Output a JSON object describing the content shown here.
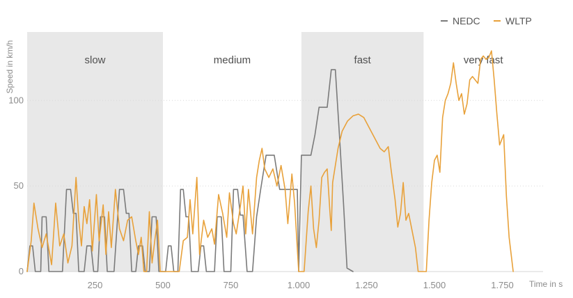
{
  "chart_data": {
    "type": "line",
    "title": "",
    "xlabel": "Time in s",
    "ylabel": "Speed in km/h",
    "xlim": [
      0,
      1900
    ],
    "ylim": [
      0,
      140
    ],
    "x_ticks": [
      250,
      500,
      750,
      1000,
      1250,
      1500,
      1750
    ],
    "x_tick_labels": [
      "250",
      "500",
      "750",
      "1.000",
      "1.250",
      "1.500",
      "1.750"
    ],
    "y_ticks": [
      0,
      50,
      100
    ],
    "y_tick_labels": [
      "0",
      "50",
      "100"
    ],
    "grid": false,
    "legend_position": "top-right",
    "bands": [
      {
        "label": "slow",
        "x": [
          0,
          500
        ],
        "shaded": true
      },
      {
        "label": "medium",
        "x": [
          500,
          1010
        ],
        "shaded": false
      },
      {
        "label": "fast",
        "x": [
          1010,
          1460
        ],
        "shaded": true
      },
      {
        "label": "very fast",
        "x": [
          1460,
          1900
        ],
        "shaded": false
      }
    ],
    "series": [
      {
        "name": "NEDC",
        "color": "#7a7a7a",
        "points": [
          [
            0,
            0
          ],
          [
            10,
            15
          ],
          [
            20,
            15
          ],
          [
            30,
            0
          ],
          [
            50,
            0
          ],
          [
            55,
            32
          ],
          [
            70,
            32
          ],
          [
            80,
            0
          ],
          [
            130,
            0
          ],
          [
            145,
            48
          ],
          [
            160,
            48
          ],
          [
            170,
            34
          ],
          [
            180,
            34
          ],
          [
            190,
            0
          ],
          [
            210,
            0
          ],
          [
            220,
            15
          ],
          [
            235,
            15
          ],
          [
            245,
            0
          ],
          [
            260,
            0
          ],
          [
            270,
            32
          ],
          [
            285,
            32
          ],
          [
            295,
            0
          ],
          [
            320,
            0
          ],
          [
            340,
            48
          ],
          [
            355,
            48
          ],
          [
            365,
            34
          ],
          [
            375,
            34
          ],
          [
            385,
            0
          ],
          [
            400,
            0
          ],
          [
            410,
            15
          ],
          [
            425,
            15
          ],
          [
            435,
            0
          ],
          [
            450,
            0
          ],
          [
            460,
            32
          ],
          [
            475,
            32
          ],
          [
            485,
            0
          ],
          [
            500,
            0
          ],
          [
            510,
            0
          ],
          [
            520,
            15
          ],
          [
            530,
            15
          ],
          [
            540,
            0
          ],
          [
            555,
            0
          ],
          [
            565,
            48
          ],
          [
            575,
            48
          ],
          [
            585,
            32
          ],
          [
            595,
            32
          ],
          [
            605,
            0
          ],
          [
            630,
            0
          ],
          [
            640,
            15
          ],
          [
            650,
            15
          ],
          [
            660,
            0
          ],
          [
            690,
            0
          ],
          [
            700,
            32
          ],
          [
            715,
            32
          ],
          [
            725,
            0
          ],
          [
            750,
            0
          ],
          [
            760,
            48
          ],
          [
            775,
            48
          ],
          [
            785,
            33
          ],
          [
            795,
            33
          ],
          [
            810,
            0
          ],
          [
            830,
            0
          ],
          [
            845,
            32
          ],
          [
            860,
            48
          ],
          [
            880,
            68
          ],
          [
            910,
            68
          ],
          [
            930,
            48
          ],
          [
            960,
            48
          ],
          [
            995,
            48
          ],
          [
            1000,
            0
          ],
          [
            1010,
            68
          ],
          [
            1045,
            68
          ],
          [
            1060,
            80
          ],
          [
            1075,
            96
          ],
          [
            1105,
            96
          ],
          [
            1120,
            118
          ],
          [
            1135,
            118
          ],
          [
            1150,
            80
          ],
          [
            1165,
            40
          ],
          [
            1178,
            2
          ],
          [
            1200,
            0
          ]
        ]
      },
      {
        "name": "WLTP",
        "color": "#e8a13a",
        "points": [
          [
            0,
            0
          ],
          [
            15,
            18
          ],
          [
            25,
            40
          ],
          [
            40,
            25
          ],
          [
            55,
            14
          ],
          [
            70,
            22
          ],
          [
            90,
            4
          ],
          [
            105,
            40
          ],
          [
            120,
            15
          ],
          [
            135,
            22
          ],
          [
            150,
            5
          ],
          [
            165,
            15
          ],
          [
            180,
            55
          ],
          [
            190,
            30
          ],
          [
            200,
            15
          ],
          [
            210,
            38
          ],
          [
            220,
            28
          ],
          [
            230,
            42
          ],
          [
            240,
            12
          ],
          [
            255,
            45
          ],
          [
            265,
            18
          ],
          [
            280,
            39
          ],
          [
            290,
            10
          ],
          [
            300,
            35
          ],
          [
            310,
            14
          ],
          [
            325,
            48
          ],
          [
            340,
            25
          ],
          [
            355,
            18
          ],
          [
            370,
            30
          ],
          [
            385,
            32
          ],
          [
            400,
            18
          ],
          [
            410,
            10
          ],
          [
            420,
            20
          ],
          [
            430,
            0
          ],
          [
            440,
            0
          ],
          [
            450,
            35
          ],
          [
            460,
            5
          ],
          [
            470,
            18
          ],
          [
            480,
            30
          ],
          [
            490,
            0
          ],
          [
            500,
            0
          ],
          [
            545,
            0
          ],
          [
            560,
            0
          ],
          [
            575,
            18
          ],
          [
            590,
            20
          ],
          [
            600,
            42
          ],
          [
            610,
            22
          ],
          [
            625,
            55
          ],
          [
            635,
            10
          ],
          [
            650,
            30
          ],
          [
            665,
            20
          ],
          [
            680,
            25
          ],
          [
            690,
            16
          ],
          [
            705,
            45
          ],
          [
            720,
            34
          ],
          [
            735,
            20
          ],
          [
            745,
            46
          ],
          [
            760,
            28
          ],
          [
            770,
            22
          ],
          [
            785,
            38
          ],
          [
            795,
            50
          ],
          [
            805,
            22
          ],
          [
            815,
            48
          ],
          [
            830,
            22
          ],
          [
            845,
            55
          ],
          [
            855,
            65
          ],
          [
            865,
            72
          ],
          [
            875,
            60
          ],
          [
            890,
            55
          ],
          [
            905,
            60
          ],
          [
            920,
            50
          ],
          [
            935,
            62
          ],
          [
            950,
            48
          ],
          [
            960,
            28
          ],
          [
            975,
            57
          ],
          [
            985,
            40
          ],
          [
            1000,
            0
          ],
          [
            1020,
            0
          ],
          [
            1035,
            35
          ],
          [
            1045,
            50
          ],
          [
            1055,
            25
          ],
          [
            1065,
            14
          ],
          [
            1075,
            30
          ],
          [
            1085,
            55
          ],
          [
            1095,
            58
          ],
          [
            1105,
            60
          ],
          [
            1115,
            35
          ],
          [
            1120,
            24
          ],
          [
            1125,
            52
          ],
          [
            1135,
            62
          ],
          [
            1145,
            72
          ],
          [
            1160,
            82
          ],
          [
            1180,
            88
          ],
          [
            1200,
            91
          ],
          [
            1220,
            92
          ],
          [
            1240,
            90
          ],
          [
            1260,
            84
          ],
          [
            1280,
            78
          ],
          [
            1300,
            72
          ],
          [
            1315,
            70
          ],
          [
            1330,
            73
          ],
          [
            1340,
            60
          ],
          [
            1355,
            42
          ],
          [
            1365,
            26
          ],
          [
            1375,
            34
          ],
          [
            1385,
            52
          ],
          [
            1395,
            30
          ],
          [
            1405,
            34
          ],
          [
            1420,
            22
          ],
          [
            1430,
            14
          ],
          [
            1440,
            0
          ],
          [
            1470,
            0
          ],
          [
            1480,
            30
          ],
          [
            1490,
            52
          ],
          [
            1500,
            65
          ],
          [
            1510,
            68
          ],
          [
            1520,
            58
          ],
          [
            1530,
            90
          ],
          [
            1540,
            100
          ],
          [
            1550,
            104
          ],
          [
            1560,
            110
          ],
          [
            1570,
            122
          ],
          [
            1580,
            110
          ],
          [
            1590,
            100
          ],
          [
            1600,
            104
          ],
          [
            1610,
            92
          ],
          [
            1620,
            98
          ],
          [
            1630,
            112
          ],
          [
            1640,
            114
          ],
          [
            1650,
            112
          ],
          [
            1660,
            110
          ],
          [
            1670,
            124
          ],
          [
            1680,
            126
          ],
          [
            1690,
            124
          ],
          [
            1700,
            125
          ],
          [
            1710,
            129
          ],
          [
            1720,
            112
          ],
          [
            1730,
            92
          ],
          [
            1740,
            74
          ],
          [
            1755,
            80
          ],
          [
            1765,
            44
          ],
          [
            1775,
            20
          ],
          [
            1790,
            0
          ]
        ]
      }
    ]
  }
}
